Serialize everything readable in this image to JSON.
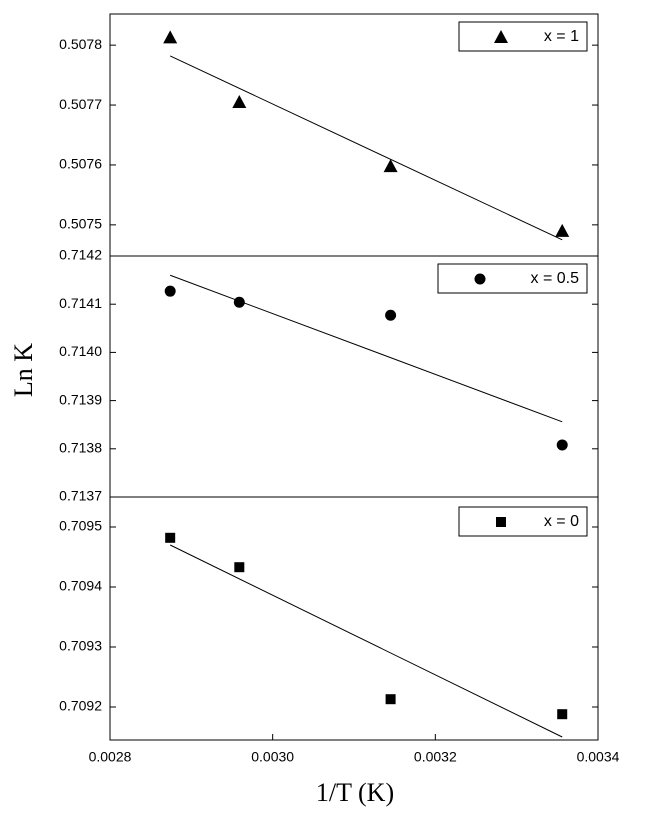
{
  "chart_data": [
    {
      "type": "scatter",
      "xlim": [
        0.0028,
        0.0034
      ],
      "ylim": [
        0.507448,
        0.507852
      ],
      "yticks": [
        0.5075,
        0.5076,
        0.5077,
        0.5078
      ],
      "series": [
        {
          "name": "x = 1",
          "color": "#000000",
          "marker": "triangle",
          "x": [
            0.002874,
            0.002959,
            0.003145,
            0.003356
          ],
          "values": [
            0.507813,
            0.507705,
            0.507598,
            0.50749
          ]
        }
      ],
      "fit": {
        "x": [
          0.002874,
          0.003356
        ],
        "values": [
          0.507782,
          0.507475
        ]
      }
    },
    {
      "type": "scatter",
      "ylabel": "Ln K",
      "xlim": [
        0.0028,
        0.0034
      ],
      "ylim": [
        0.7137,
        0.7142
      ],
      "yticks": [
        0.7137,
        0.7138,
        0.7139,
        {
          "value": 0.714,
          "label": "0.7140"
        },
        0.7141,
        0.7142
      ],
      "series": [
        {
          "name": "x = 0.5",
          "color": "#000000",
          "marker": "circle",
          "x": [
            0.002874,
            0.002959,
            0.003145,
            0.003356
          ],
          "values": [
            0.714127,
            0.714104,
            0.714077,
            0.713808
          ]
        }
      ],
      "fit": {
        "x": [
          0.002874,
          0.003356
        ],
        "values": [
          0.71416,
          0.713856
        ]
      }
    },
    {
      "type": "scatter",
      "xlabel": "1/T (K)",
      "xlim": [
        0.0028,
        0.0034
      ],
      "ylim": [
        0.709145,
        0.70955
      ],
      "xticks": [
        0.0028,
        {
          "value": 0.003,
          "label": "0.0030"
        },
        0.0032,
        0.0034
      ],
      "yticks": [
        0.7092,
        0.7093,
        0.7094,
        0.7095
      ],
      "series": [
        {
          "name": "x = 0",
          "color": "#000000",
          "marker": "square",
          "x": [
            0.002874,
            0.002959,
            0.003145,
            0.003356
          ],
          "values": [
            0.709482,
            0.709433,
            0.709213,
            0.709188
          ]
        }
      ],
      "fit": {
        "x": [
          0.002874,
          0.003356
        ],
        "values": [
          0.70947,
          0.70915
        ]
      }
    }
  ]
}
